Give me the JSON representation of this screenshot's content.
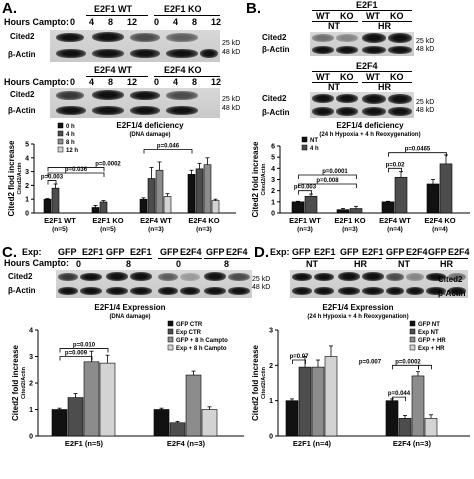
{
  "panelA": {
    "letter": "A.",
    "e2f1_wt": "E2F1 WT",
    "e2f1_ko": "E2F1 KO",
    "e2f4_wt": "E2F4 WT",
    "e2f4_ko": "E2F4 KO",
    "hours_label": "Hours Campto:",
    "hours": [
      "0",
      "4",
      "8",
      "12",
      "0",
      "4",
      "8",
      "12"
    ],
    "cited2": "Cited2",
    "actin": "β-Actin",
    "kd25": "25 kD",
    "kd48": "48 kD"
  },
  "panelB": {
    "letter": "B.",
    "e2f1": "E2F1",
    "e2f4": "E2F4",
    "wt": "WT",
    "ko": "KO",
    "nt": "NT",
    "hr": "HR",
    "cited2": "Cited2",
    "actin": "β-Actin",
    "kd25": "25 kD",
    "kd48": "48 kD"
  },
  "panelC": {
    "letter": "C.",
    "exp_label": "Exp:",
    "hours_label": "Hours Campto:",
    "gfp": "GFP",
    "e2f1": "E2F1",
    "e2f4": "E2F4",
    "h0": "0",
    "h8": "8",
    "cited2": "Cited2",
    "actin": "β-Actin",
    "kd25": "25 kD",
    "kd48": "48 kD"
  },
  "panelD": {
    "letter": "D.",
    "exp_label": "Exp:",
    "gfp": "GFP",
    "e2f1": "E2F1",
    "e2f4": "E2F4",
    "nt": "NT",
    "hr": "HR",
    "cited2": "Cited2",
    "actin": "β-Actin"
  },
  "chart_data": [
    {
      "id": "A",
      "type": "bar",
      "title": "E2F1/4 deficiency",
      "subtitle": "(DNA damage)",
      "ylabel": "Cited2 flod increase",
      "ylabel2": "Cited2/Actin",
      "ylim": [
        0,
        5
      ],
      "yticks": [
        0,
        1,
        2,
        3,
        4,
        5
      ],
      "categories": [
        "E2F1 WT",
        "E2F1 KO",
        "E2F4 WT",
        "E2F4 KO"
      ],
      "category_n": [
        "(n=5)",
        "(n=5)",
        "(n=3)",
        "(n=3)"
      ],
      "series": [
        {
          "name": "0 h",
          "values": [
            1.0,
            0.4,
            1.0,
            2.8
          ],
          "errors": [
            0.05,
            0.15,
            0.1,
            0.3
          ],
          "color": "#111111"
        },
        {
          "name": "4 h",
          "values": [
            1.8,
            0.8,
            2.5,
            3.2
          ],
          "errors": [
            0.3,
            0.1,
            0.8,
            0.4
          ],
          "color": "#4d4d4d"
        },
        {
          "name": "8 h",
          "values": [
            null,
            null,
            3.1,
            3.5
          ],
          "errors": [
            null,
            null,
            0.6,
            0.5
          ],
          "color": "#8c8c8c"
        },
        {
          "name": "12 h",
          "values": [
            null,
            null,
            1.2,
            0.9
          ],
          "errors": [
            null,
            null,
            0.2,
            0.1
          ],
          "color": "#d3d3d3"
        }
      ],
      "pvalues": [
        "p=0.003",
        "p=0.036",
        "p=0.0002",
        "p=0.046"
      ],
      "legend": "top-left"
    },
    {
      "id": "B",
      "type": "bar",
      "title": "E2F1/4 deficiency",
      "subtitle": "(24 h Hypoxia + 4 h Reoxygenation)",
      "ylabel": "Cited2 fold increase",
      "ylabel2": "Cited2/Actin",
      "ylim": [
        0,
        6
      ],
      "yticks": [
        0,
        1,
        2,
        3,
        4,
        5,
        6
      ],
      "categories": [
        "E2F1 WT",
        "E2F1 KO",
        "E2F4 WT",
        "E2F4 KO"
      ],
      "category_n": [
        "(n=3)",
        "(n=3)",
        "(n=4)",
        "(n=4)"
      ],
      "series": [
        {
          "name": "NT",
          "values": [
            1.0,
            0.3,
            1.0,
            2.6
          ],
          "errors": [
            0.05,
            0.1,
            0.05,
            0.4
          ],
          "color": "#111111"
        },
        {
          "name": "4 h",
          "values": [
            1.5,
            0.4,
            3.2,
            4.4
          ],
          "errors": [
            0.2,
            0.2,
            0.5,
            0.8
          ],
          "color": "#4d4d4d"
        }
      ],
      "pvalues": [
        "p=0.003",
        "p=0.008",
        "p=0.0001",
        "p=0.02",
        "p=0.0465"
      ],
      "legend": "top-left"
    },
    {
      "id": "C",
      "type": "bar",
      "title": "E2F1/4 Expression",
      "subtitle": "(DNA damage)",
      "ylabel": "Cited2 fold increase",
      "ylabel2": "Cited2/Actin",
      "ylim": [
        0,
        4
      ],
      "yticks": [
        0,
        1,
        2,
        3,
        4
      ],
      "categories": [
        "E2F1 (n=5)",
        "E2F4 (n=3)"
      ],
      "series": [
        {
          "name": "GFP CTR",
          "values": [
            1.0,
            1.0
          ],
          "errors": [
            0.05,
            0.05
          ],
          "color": "#111111"
        },
        {
          "name": "Exp CTR",
          "values": [
            1.45,
            0.5
          ],
          "errors": [
            0.15,
            0.05
          ],
          "color": "#4d4d4d"
        },
        {
          "name": "GFP + 8 h Campto",
          "values": [
            2.8,
            2.3
          ],
          "errors": [
            0.4,
            0.15
          ],
          "color": "#8c8c8c"
        },
        {
          "name": "Exp + 8 h Campto",
          "values": [
            2.75,
            1.0
          ],
          "errors": [
            0.3,
            0.1
          ],
          "color": "#d3d3d3"
        }
      ],
      "pvalues": [
        "p=0.010",
        "p=0.009"
      ],
      "legend": "top-right"
    },
    {
      "id": "D",
      "type": "bar",
      "title": "E2F1/4 Expression",
      "subtitle": "(24 h Hypoxia + 4 h Reoxygenation)",
      "ylabel": "Cited2 fold increase",
      "ylabel2": "Cited2/Actin",
      "ylim": [
        0,
        3
      ],
      "yticks": [
        0,
        1,
        2,
        3
      ],
      "categories": [
        "E2F1 (n=4)",
        "E2F4 (n=3)"
      ],
      "series": [
        {
          "name": "GFP NT",
          "values": [
            1.0,
            1.0
          ],
          "errors": [
            0.05,
            0.05
          ],
          "color": "#111111"
        },
        {
          "name": "Exp NT",
          "values": [
            1.95,
            0.5
          ],
          "errors": [
            0.3,
            0.08
          ],
          "color": "#4d4d4d"
        },
        {
          "name": "GFP + HR",
          "values": [
            1.95,
            1.7
          ],
          "errors": [
            0.2,
            0.12
          ],
          "color": "#8c8c8c"
        },
        {
          "name": "Exp + HR",
          "values": [
            2.25,
            0.5
          ],
          "errors": [
            0.3,
            0.1
          ],
          "color": "#d3d3d3"
        }
      ],
      "pvalues": [
        "p=0.07",
        "p=0.044",
        "p=0.007",
        "p=0.0002"
      ],
      "legend": "top-right"
    }
  ]
}
